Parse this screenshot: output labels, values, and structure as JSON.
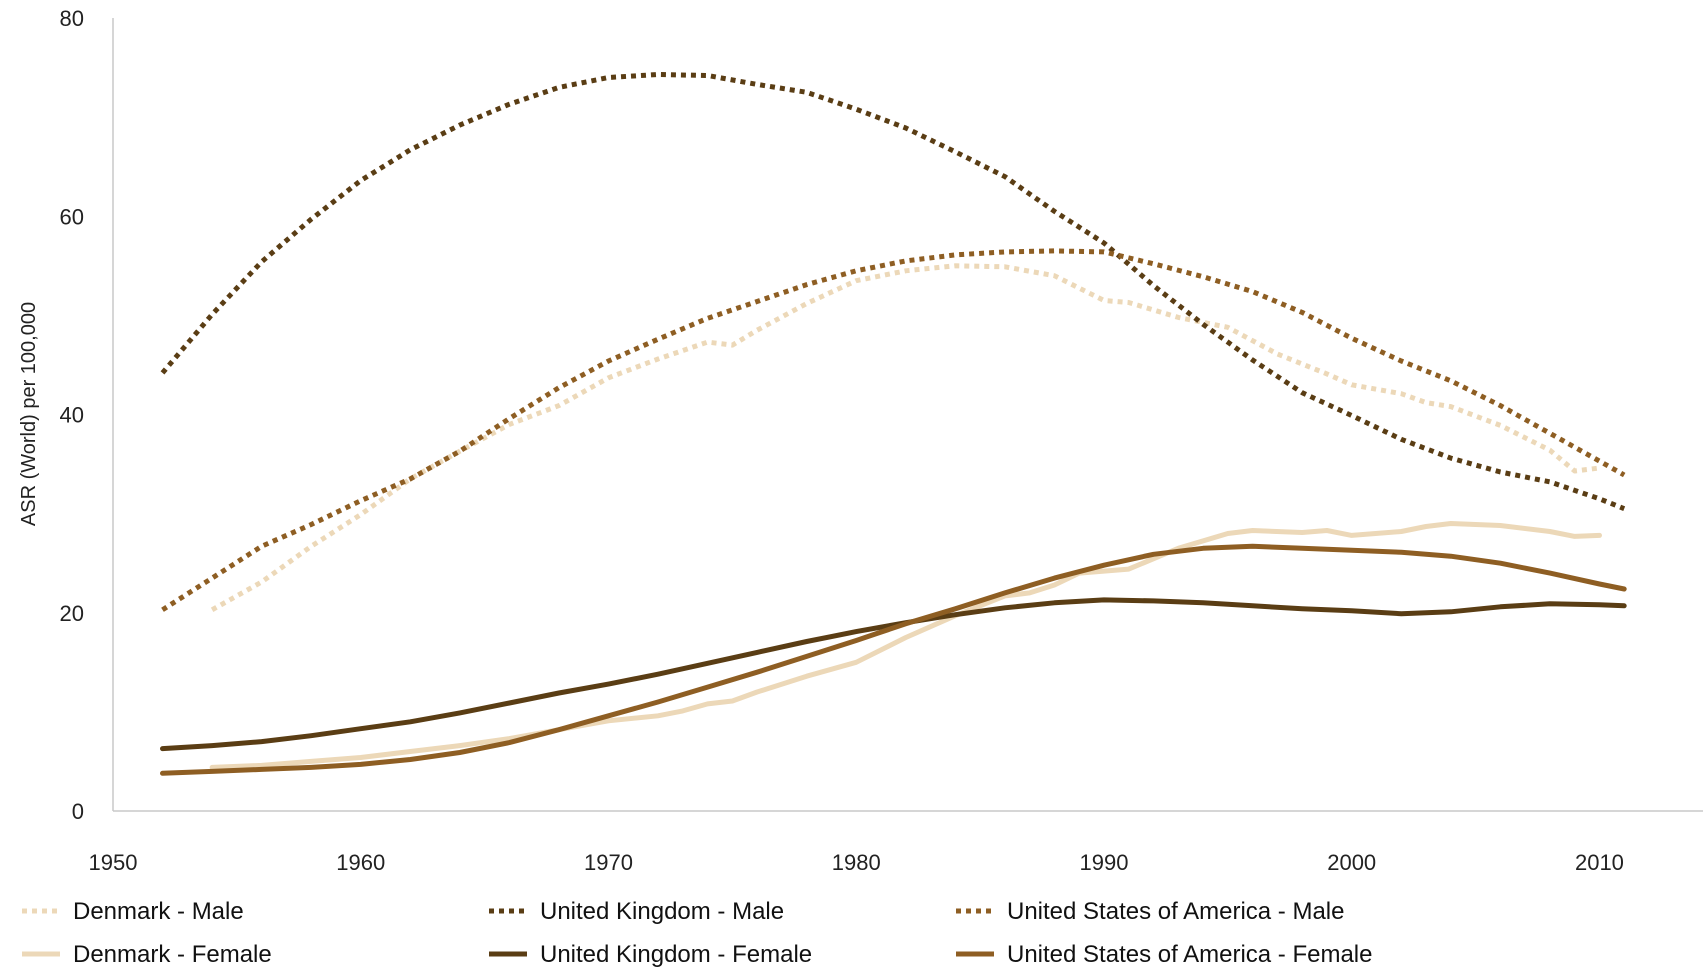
{
  "chart_data": {
    "type": "line",
    "title": "",
    "xlabel": "",
    "ylabel": "ASR (World) per 100,000",
    "xlim": [
      1950,
      2012
    ],
    "ylim": [
      0,
      80
    ],
    "x_ticks": [
      "1950",
      "1960",
      "1970",
      "1980",
      "1990",
      "2000",
      "2010"
    ],
    "y_ticks": [
      "0",
      "20",
      "40",
      "60",
      "80"
    ],
    "grid": false,
    "legend": "bottom",
    "series": [
      {
        "name": "Denmark - Male",
        "color": "#ecd8b8",
        "style": "dotted",
        "x": [
          1954,
          1956,
          1958,
          1960,
          1962,
          1964,
          1966,
          1968,
          1970,
          1972,
          1974,
          1975,
          1976,
          1978,
          1980,
          1982,
          1984,
          1986,
          1988,
          1990,
          1991,
          1993,
          1995,
          1997,
          1999,
          2000,
          2002,
          2003,
          2004,
          2006,
          2008,
          2009,
          2010
        ],
        "y": [
          20.3,
          23.1,
          26.7,
          29.9,
          33.5,
          36.3,
          39.0,
          40.9,
          43.7,
          45.6,
          47.3,
          47.0,
          48.5,
          51.2,
          53.5,
          54.5,
          55.0,
          54.9,
          54.0,
          51.5,
          51.3,
          49.8,
          48.8,
          46.1,
          44.1,
          43.0,
          42.1,
          41.2,
          40.8,
          38.9,
          36.4,
          34.3,
          34.6
        ]
      },
      {
        "name": "United Kingdom - Male",
        "color": "#5a3d14",
        "style": "dotted",
        "x": [
          1952,
          1954,
          1956,
          1958,
          1960,
          1962,
          1964,
          1966,
          1968,
          1970,
          1972,
          1974,
          1976,
          1978,
          1980,
          1982,
          1984,
          1986,
          1988,
          1990,
          1992,
          1994,
          1996,
          1998,
          2000,
          2002,
          2004,
          2006,
          2008,
          2010,
          2011
        ],
        "y": [
          44.2,
          50.1,
          55.4,
          59.7,
          63.6,
          66.7,
          69.2,
          71.3,
          73.0,
          74.0,
          74.3,
          74.2,
          73.3,
          72.5,
          70.8,
          68.9,
          66.5,
          64.0,
          60.5,
          57.3,
          53.0,
          49.1,
          45.5,
          42.2,
          39.9,
          37.5,
          35.6,
          34.2,
          33.2,
          31.5,
          30.5
        ]
      },
      {
        "name": "United States of America - Male",
        "color": "#8e5e23",
        "style": "dotted",
        "x": [
          1952,
          1954,
          1956,
          1958,
          1960,
          1962,
          1964,
          1966,
          1968,
          1970,
          1972,
          1974,
          1976,
          1978,
          1980,
          1982,
          1984,
          1986,
          1988,
          1990,
          1992,
          1994,
          1996,
          1998,
          2000,
          2002,
          2004,
          2006,
          2008,
          2010,
          2011
        ],
        "y": [
          20.3,
          23.5,
          26.7,
          28.9,
          31.3,
          33.5,
          36.3,
          39.6,
          42.7,
          45.4,
          47.6,
          49.7,
          51.4,
          53.1,
          54.5,
          55.5,
          56.1,
          56.4,
          56.5,
          56.4,
          55.2,
          53.9,
          52.4,
          50.3,
          47.7,
          45.4,
          43.4,
          40.9,
          38.1,
          35.3,
          33.9
        ]
      },
      {
        "name": "Denmark - Female",
        "color": "#ecd8b8",
        "style": "solid",
        "x": [
          1954,
          1956,
          1958,
          1960,
          1962,
          1964,
          1966,
          1968,
          1970,
          1972,
          1973,
          1974,
          1975,
          1976,
          1978,
          1980,
          1982,
          1984,
          1986,
          1987,
          1988,
          1989,
          1990,
          1991,
          1993,
          1995,
          1996,
          1998,
          1999,
          2000,
          2002,
          2003,
          2004,
          2006,
          2008,
          2009,
          2010
        ],
        "y": [
          4.4,
          4.6,
          5.0,
          5.4,
          6.0,
          6.6,
          7.3,
          8.2,
          9.1,
          9.6,
          10.1,
          10.8,
          11.1,
          12.0,
          13.6,
          15.0,
          17.5,
          19.7,
          21.7,
          22.0,
          22.8,
          24.0,
          24.2,
          24.4,
          26.5,
          28.0,
          28.3,
          28.1,
          28.3,
          27.8,
          28.2,
          28.7,
          29.0,
          28.8,
          28.2,
          27.7,
          27.8
        ]
      },
      {
        "name": "United Kingdom - Female",
        "color": "#5a3d14",
        "style": "solid",
        "x": [
          1952,
          1954,
          1956,
          1958,
          1960,
          1962,
          1964,
          1966,
          1968,
          1970,
          1972,
          1974,
          1976,
          1978,
          1980,
          1982,
          1984,
          1986,
          1988,
          1990,
          1992,
          1994,
          1996,
          1998,
          2000,
          2002,
          2004,
          2006,
          2008,
          2010,
          2011
        ],
        "y": [
          6.3,
          6.6,
          7.0,
          7.6,
          8.3,
          9.0,
          9.9,
          10.9,
          11.9,
          12.8,
          13.8,
          14.9,
          16.0,
          17.1,
          18.1,
          19.0,
          19.8,
          20.5,
          21.0,
          21.3,
          21.2,
          21.0,
          20.7,
          20.4,
          20.2,
          19.9,
          20.1,
          20.6,
          20.9,
          20.8,
          20.7
        ]
      },
      {
        "name": "United States of America - Female",
        "color": "#8e5e23",
        "style": "solid",
        "x": [
          1952,
          1954,
          1956,
          1958,
          1960,
          1962,
          1964,
          1966,
          1968,
          1970,
          1972,
          1974,
          1976,
          1978,
          1980,
          1982,
          1984,
          1986,
          1988,
          1990,
          1992,
          1994,
          1996,
          1998,
          2000,
          2002,
          2004,
          2006,
          2008,
          2010,
          2011
        ],
        "y": [
          3.8,
          4.0,
          4.2,
          4.4,
          4.7,
          5.2,
          5.9,
          6.9,
          8.2,
          9.6,
          11.0,
          12.5,
          14.0,
          15.6,
          17.2,
          18.9,
          20.4,
          22.0,
          23.5,
          24.8,
          25.9,
          26.5,
          26.7,
          26.5,
          26.3,
          26.1,
          25.7,
          25.0,
          24.0,
          22.9,
          22.4
        ]
      }
    ]
  }
}
